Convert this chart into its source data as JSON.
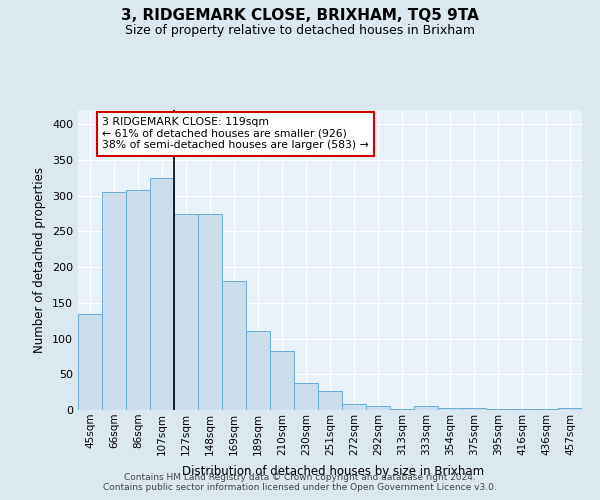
{
  "title": "3, RIDGEMARK CLOSE, BRIXHAM, TQ5 9TA",
  "subtitle": "Size of property relative to detached houses in Brixham",
  "xlabel": "Distribution of detached houses by size in Brixham",
  "ylabel": "Number of detached properties",
  "categories": [
    "45sqm",
    "66sqm",
    "86sqm",
    "107sqm",
    "127sqm",
    "148sqm",
    "169sqm",
    "189sqm",
    "210sqm",
    "230sqm",
    "251sqm",
    "272sqm",
    "292sqm",
    "313sqm",
    "333sqm",
    "354sqm",
    "375sqm",
    "395sqm",
    "416sqm",
    "436sqm",
    "457sqm"
  ],
  "heights": [
    135,
    305,
    308,
    325,
    275,
    275,
    180,
    110,
    83,
    38,
    26,
    9,
    5,
    2,
    5,
    3,
    3,
    2,
    1,
    1,
    3
  ],
  "bar_color": "#ccdded",
  "bar_edge_color": "#6aaed6",
  "background_color": "#e8f0f8",
  "plot_bg_color": "#e8f0f8",
  "grid_color": "#ffffff",
  "annotation_text": "3 RIDGEMARK CLOSE: 119sqm\n← 61% of detached houses are smaller (926)\n38% of semi-detached houses are larger (583) →",
  "annotation_box_color": "#ffffff",
  "annotation_box_edge": "#cc0000",
  "vline_color": "#000000",
  "vline_x_index": 3,
  "ylim": [
    0,
    420
  ],
  "yticks": [
    0,
    50,
    100,
    150,
    200,
    250,
    300,
    350,
    400
  ],
  "footer_line1": "Contains HM Land Registry data © Crown copyright and database right 2024.",
  "footer_line2": "Contains public sector information licensed under the Open Government Licence v3.0."
}
